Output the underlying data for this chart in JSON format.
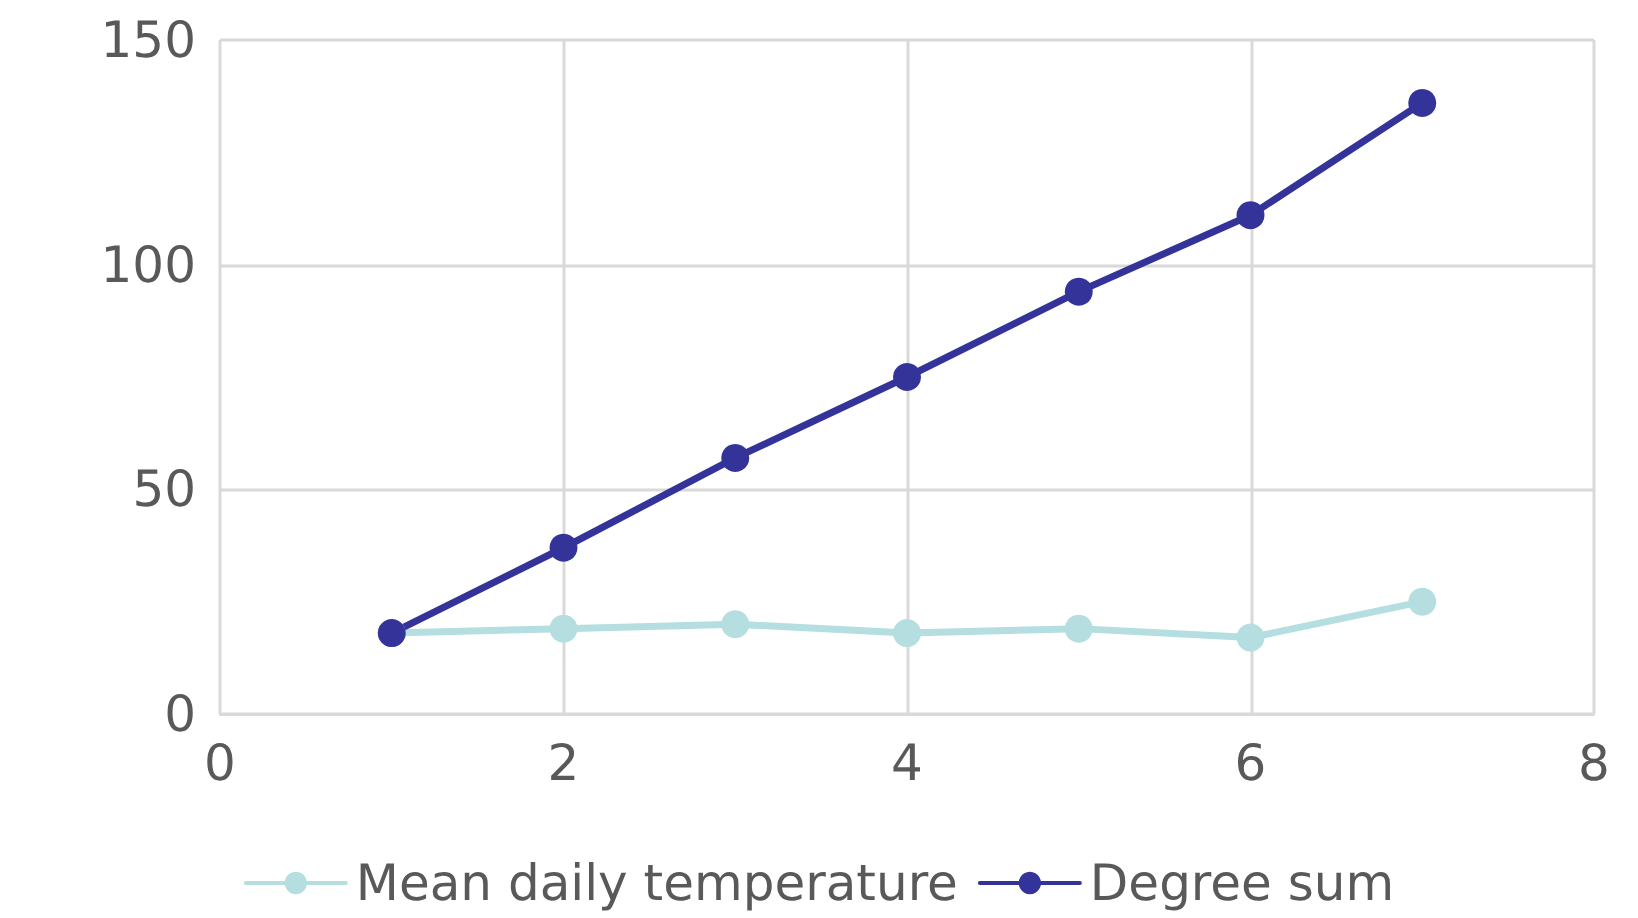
{
  "chart_data": {
    "type": "line",
    "x": [
      1,
      2,
      3,
      4,
      5,
      6,
      7
    ],
    "series": [
      {
        "name": "Mean daily temperature",
        "color": "#b4dedf",
        "values": [
          18,
          19,
          20,
          18,
          19,
          17,
          25
        ]
      },
      {
        "name": "Degree sum",
        "color": "#333399",
        "values": [
          18,
          37,
          57,
          75,
          94,
          111,
          136
        ]
      }
    ],
    "xlim": [
      0,
      8
    ],
    "xticks": [
      0,
      2,
      4,
      6,
      8
    ],
    "ylim": [
      0,
      150
    ],
    "yticks": [
      0,
      50,
      100,
      150
    ],
    "grid": true,
    "legend": "bottom",
    "marker": "circle",
    "line_style": "solid"
  }
}
